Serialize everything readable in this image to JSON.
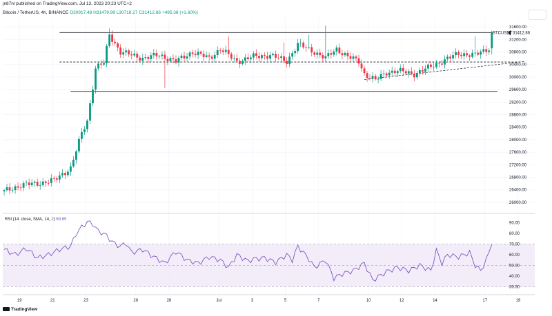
{
  "header": {
    "published": "jn87nl published on TradingView.com, Jul 13, 2023 20:23 UTC+2",
    "symbol": "Bitcoin / TetherUS, 4h, BINANCE",
    "open": "O30917.48",
    "high": "H31479.99",
    "low": "L30718.27",
    "close": "C31412.86",
    "change": "+495.38 (+1.60%)"
  },
  "rsi_header": {
    "label": "RSI (14, close, SMA, 14, 2)",
    "value": "69.65"
  },
  "price_label": {
    "ticker": "BTCUSDT",
    "price": "31412.86"
  },
  "footer": {
    "brand": "TradingView"
  },
  "colors": {
    "up": "#089981",
    "down": "#f23645",
    "rsi": "#7e57c2",
    "band": "#ede7f6",
    "grid": "#f0f3fa"
  },
  "chart_data": [
    {
      "type": "candlestick",
      "title": "Bitcoin / TetherUS, 4h, BINANCE",
      "ylim": [
        25800,
        31800
      ],
      "y_ticks": [
        "31600.00",
        "31200.00",
        "30800.00",
        "30400.00",
        "30000.00",
        "29600.00",
        "29200.00",
        "28800.00",
        "28400.00",
        "28000.00",
        "27600.00",
        "27200.00",
        "26800.00",
        "26400.00",
        "26000.00"
      ],
      "x_ticks": [
        "19",
        "21",
        "23",
        "26",
        "28",
        "Jul",
        "3",
        "5",
        "7",
        "10",
        "12",
        "14",
        "17",
        "19"
      ],
      "x_tick_day_index": [
        1,
        3,
        5,
        8,
        10,
        13,
        15,
        17,
        19,
        22,
        24,
        26,
        29,
        31
      ],
      "n_days_visible": 32,
      "bars_per_day": 6,
      "anchors": [
        [
          0,
          26350
        ],
        [
          6,
          26550
        ],
        [
          12,
          26600
        ],
        [
          18,
          26700
        ],
        [
          24,
          27100
        ],
        [
          28,
          28200
        ],
        [
          30,
          28600
        ],
        [
          32,
          29700
        ],
        [
          33,
          30300
        ],
        [
          36,
          30450
        ],
        [
          38,
          31350
        ],
        [
          42,
          30800
        ],
        [
          50,
          30600
        ],
        [
          56,
          30700
        ],
        [
          62,
          30500
        ],
        [
          68,
          30800
        ],
        [
          74,
          30600
        ],
        [
          78,
          30900
        ],
        [
          84,
          30500
        ],
        [
          90,
          30650
        ],
        [
          96,
          30700
        ],
        [
          102,
          30500
        ],
        [
          106,
          31050
        ],
        [
          112,
          30800
        ],
        [
          116,
          30600
        ],
        [
          120,
          30900
        ],
        [
          124,
          30650
        ],
        [
          128,
          30500
        ],
        [
          130,
          30100
        ],
        [
          134,
          29900
        ],
        [
          138,
          30150
        ],
        [
          142,
          30200
        ],
        [
          148,
          30100
        ],
        [
          152,
          30250
        ],
        [
          158,
          30500
        ],
        [
          164,
          30750
        ],
        [
          170,
          30700
        ],
        [
          175,
          30920
        ],
        [
          176,
          31413
        ]
      ],
      "spikes": [
        [
          38,
          "h",
          31550
        ],
        [
          58,
          "l",
          29650
        ],
        [
          81,
          "h",
          31300
        ],
        [
          101,
          "h",
          31100
        ],
        [
          116,
          "h",
          31650
        ],
        [
          170,
          "h",
          31300
        ],
        [
          110,
          "h",
          31350
        ]
      ],
      "levels": [
        31420,
        30480,
        29540
      ],
      "trendline": [
        [
          130,
          29920
        ],
        [
          188,
          30500
        ]
      ],
      "last_price": 31412.86
    },
    {
      "type": "line",
      "title": "RSI (14, close, SMA, 14, 2)",
      "ylim": [
        25,
        95
      ],
      "y_ticks": [
        "90.00",
        "80.00",
        "70.00",
        "60.00",
        "50.00",
        "40.00",
        "30.00"
      ],
      "band": [
        30,
        70
      ],
      "mid": 50,
      "anchors": [
        [
          0,
          65
        ],
        [
          4,
          60
        ],
        [
          8,
          66
        ],
        [
          12,
          57
        ],
        [
          16,
          60
        ],
        [
          20,
          65
        ],
        [
          24,
          68
        ],
        [
          26,
          80
        ],
        [
          28,
          86
        ],
        [
          30,
          91
        ],
        [
          32,
          89
        ],
        [
          34,
          82
        ],
        [
          36,
          80
        ],
        [
          38,
          75
        ],
        [
          40,
          70
        ],
        [
          42,
          68
        ],
        [
          44,
          71
        ],
        [
          46,
          62
        ],
        [
          50,
          65
        ],
        [
          54,
          58
        ],
        [
          58,
          52
        ],
        [
          62,
          63
        ],
        [
          66,
          55
        ],
        [
          70,
          52
        ],
        [
          74,
          58
        ],
        [
          78,
          55
        ],
        [
          81,
          48
        ],
        [
          84,
          60
        ],
        [
          88,
          54
        ],
        [
          90,
          56
        ],
        [
          94,
          57
        ],
        [
          98,
          53
        ],
        [
          102,
          60
        ],
        [
          104,
          55
        ],
        [
          106,
          68
        ],
        [
          108,
          62
        ],
        [
          110,
          56
        ],
        [
          112,
          48
        ],
        [
          116,
          55
        ],
        [
          119,
          38
        ],
        [
          122,
          42
        ],
        [
          126,
          45
        ],
        [
          130,
          52
        ],
        [
          133,
          36
        ],
        [
          138,
          44
        ],
        [
          142,
          48
        ],
        [
          146,
          45
        ],
        [
          150,
          50
        ],
        [
          154,
          45
        ],
        [
          156,
          64
        ],
        [
          158,
          52
        ],
        [
          160,
          60
        ],
        [
          164,
          58
        ],
        [
          168,
          62
        ],
        [
          170,
          50
        ],
        [
          172,
          45
        ],
        [
          174,
          55
        ],
        [
          176,
          69.65
        ]
      ],
      "last_value": 69.65
    }
  ]
}
